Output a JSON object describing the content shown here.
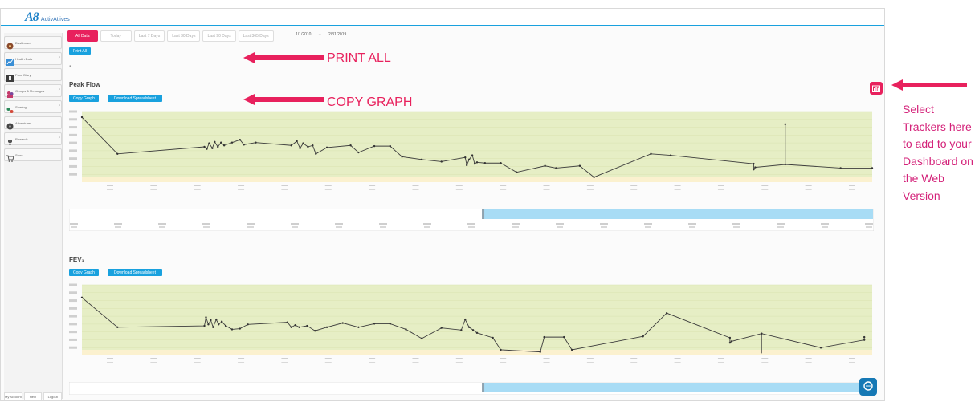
{
  "app": {
    "logo_text": "A8",
    "logo_sub": "ActivAtlives"
  },
  "sidebar": {
    "items": [
      {
        "label": "Dashboard",
        "icon": "dashboard-icon",
        "chevron": false
      },
      {
        "label": "Health Data",
        "icon": "chart-icon",
        "chevron": true
      },
      {
        "label": "Food Diary",
        "icon": "food-icon",
        "chevron": false
      },
      {
        "label": "Groups & Messages",
        "icon": "groups-icon",
        "chevron": true
      },
      {
        "label": "Sharing",
        "icon": "share-icon",
        "chevron": true
      },
      {
        "label": "Adventures",
        "icon": "compass-icon",
        "chevron": false
      },
      {
        "label": "Rewards",
        "icon": "trophy-icon",
        "chevron": true
      },
      {
        "label": "Store",
        "icon": "cart-icon",
        "chevron": false
      }
    ],
    "footer": [
      "My Account",
      "Help",
      "Logout"
    ]
  },
  "tabs": [
    "All Data",
    "Today",
    "Last 7 Days",
    "Last 30 Days",
    "Last 90 Days",
    "Last 365 Days"
  ],
  "date_range": {
    "from": "1/1/2010",
    "to": "2/31/2019"
  },
  "print_all_label": "Print All",
  "peak_flow": {
    "title": "Peak Flow",
    "copy_label": "Copy Graph",
    "download_label": "Download Spreadsheet"
  },
  "fev1": {
    "title": "FEV₁",
    "copy_label": "Copy Graph",
    "download_label": "Download Spreadsheet"
  },
  "annotations": {
    "print_all": "PRINT ALL",
    "copy_graph": "COPY GRAPH",
    "select_trackers": "Select Trackers here to add to your Dashboard on the Web Version"
  },
  "colors": {
    "accent": "#e8215d",
    "blue": "#19a1de",
    "plot_green": "#e6eec5",
    "plot_yellow": "#fbf1cf",
    "navigator_blue": "#a8dcf5"
  }
}
